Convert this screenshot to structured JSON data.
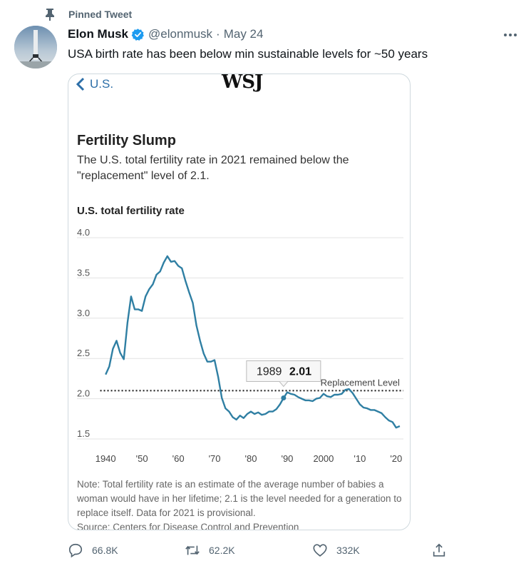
{
  "pinned": {
    "label": "Pinned Tweet",
    "icon": "pin-icon"
  },
  "tweet": {
    "author_name": "Elon Musk",
    "handle": "@elonmusk",
    "separator": "·",
    "date": "May 24",
    "text": "USA birth rate has been below min sustainable levels for ~50 years",
    "verified_icon": "verified-badge-icon",
    "more_icon": "more-options-icon"
  },
  "media": {
    "back_label": "U.S.",
    "logo": "WSJ",
    "title": "Fertility Slump",
    "subtitle": "The U.S. total fertility rate in 2021 remained below the \"replacement\" level of 2.1.",
    "chart_heading": "U.S. total fertility rate",
    "note": "Note: Total fertility rate is an estimate of the average number of babies a woman would have in her lifetime; 2.1 is the level needed for a generation to replace itself. Data for 2021 is provisional.",
    "source": "Source: Centers for Disease Control and Prevention"
  },
  "chart_data": {
    "type": "line",
    "title": "Fertility Slump",
    "ylabel": "U.S. total fertility rate",
    "xlim": [
      1938,
      2022
    ],
    "ylim": [
      1.5,
      4.0
    ],
    "y_ticks": [
      1.5,
      2.0,
      2.5,
      3.0,
      3.5,
      4.0
    ],
    "y_tick_labels": [
      "1.5",
      "2.0",
      "2.5",
      "3.0",
      "3.5",
      "4.0"
    ],
    "x_ticks": [
      1940,
      1950,
      1960,
      1970,
      1980,
      1990,
      2000,
      2010,
      2020
    ],
    "x_tick_labels": [
      "1940",
      "'50",
      "'60",
      "'70",
      "'80",
      "'90",
      "2000",
      "'10",
      "'20"
    ],
    "grid": true,
    "line_color": "#2f7fa3",
    "reference_line": {
      "label": "Replacement Level",
      "value": 2.1
    },
    "tooltip": {
      "x": 1989,
      "year_label": "1989",
      "value_label": "2.01"
    },
    "series": [
      {
        "x": [
          1940,
          1941,
          1942,
          1943,
          1944,
          1945,
          1946,
          1947,
          1948,
          1949,
          1950,
          1951,
          1952,
          1953,
          1954,
          1955,
          1956,
          1957,
          1958,
          1959,
          1960,
          1961,
          1962,
          1963,
          1964,
          1965,
          1966,
          1967,
          1968,
          1969,
          1970,
          1971,
          1972,
          1973,
          1974,
          1975,
          1976,
          1977,
          1978,
          1979,
          1980,
          1981,
          1982,
          1983,
          1984,
          1985,
          1986,
          1987,
          1988,
          1989,
          1990,
          1991,
          1992,
          1993,
          1994,
          1995,
          1996,
          1997,
          1998,
          1999,
          2000,
          2001,
          2002,
          2003,
          2004,
          2005,
          2006,
          2007,
          2008,
          2009,
          2010,
          2011,
          2012,
          2013,
          2014,
          2015,
          2016,
          2017,
          2018,
          2019,
          2020,
          2021
        ],
        "y": [
          2.3,
          2.4,
          2.62,
          2.72,
          2.57,
          2.49,
          2.94,
          3.27,
          3.11,
          3.11,
          3.09,
          3.27,
          3.36,
          3.42,
          3.54,
          3.58,
          3.69,
          3.77,
          3.7,
          3.71,
          3.65,
          3.62,
          3.46,
          3.32,
          3.19,
          2.91,
          2.72,
          2.56,
          2.46,
          2.46,
          2.48,
          2.27,
          2.01,
          1.88,
          1.84,
          1.77,
          1.74,
          1.79,
          1.76,
          1.81,
          1.84,
          1.81,
          1.83,
          1.8,
          1.81,
          1.84,
          1.84,
          1.87,
          1.93,
          2.01,
          2.08,
          2.06,
          2.05,
          2.02,
          2.0,
          1.98,
          1.98,
          1.97,
          2.0,
          2.01,
          2.06,
          2.03,
          2.02,
          2.05,
          2.05,
          2.06,
          2.11,
          2.12,
          2.07,
          2.0,
          1.93,
          1.89,
          1.88,
          1.86,
          1.86,
          1.84,
          1.82,
          1.77,
          1.73,
          1.71,
          1.64,
          1.66
        ]
      }
    ]
  },
  "actions": {
    "reply_count": "66.8K",
    "retweet_count": "62.2K",
    "like_count": "332K",
    "reply_icon": "reply-icon",
    "retweet_icon": "retweet-icon",
    "like_icon": "heart-icon",
    "share_icon": "share-icon"
  }
}
